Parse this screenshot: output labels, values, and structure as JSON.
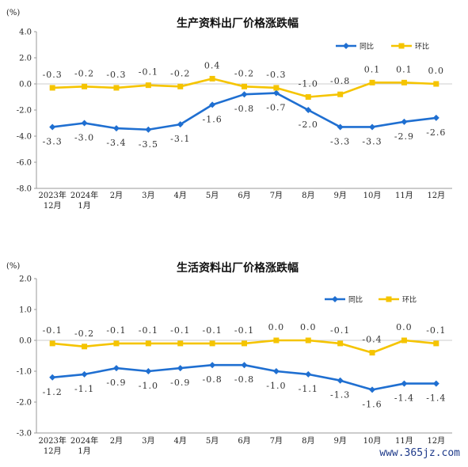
{
  "chart_data": [
    {
      "type": "line",
      "title": "生产资料出厂价格涨跌幅",
      "ylabel": "(%)",
      "ylim": [
        -8.0,
        4.0
      ],
      "yticks": [
        "4.0",
        "2.0",
        "0.0",
        "-2.0",
        "-4.0",
        "-6.0",
        "-8.0"
      ],
      "ytick_values": [
        4,
        2,
        0,
        -2,
        -4,
        -6,
        -8
      ],
      "categories": [
        "2023年12月",
        "2024年1月",
        "2月",
        "3月",
        "4月",
        "5月",
        "6月",
        "7月",
        "8月",
        "9月",
        "10月",
        "11月",
        "12月"
      ],
      "category_lines": [
        [
          "2023年",
          "12月"
        ],
        [
          "2024年",
          "1月"
        ],
        [
          "2月"
        ],
        [
          "3月"
        ],
        [
          "4月"
        ],
        [
          "5月"
        ],
        [
          "6月"
        ],
        [
          "7月"
        ],
        [
          "8月"
        ],
        [
          "9月"
        ],
        [
          "10月"
        ],
        [
          "11月"
        ],
        [
          "12月"
        ]
      ],
      "series": [
        {
          "name": "同比",
          "color": "#1f6fd1",
          "values": [
            -3.3,
            -3.0,
            -3.4,
            -3.5,
            -3.1,
            -1.6,
            -0.8,
            -0.7,
            -2.0,
            -3.3,
            -3.3,
            -2.9,
            -2.6
          ],
          "labels": [
            "-3.3",
            "-3.0",
            "-3.4",
            "-3.5",
            "-3.1",
            "-1.6",
            "-0.8",
            "-0.7",
            "-2.0",
            "-3.3",
            "-3.3",
            "-2.9",
            "-2.6"
          ]
        },
        {
          "name": "环比",
          "color": "#f5c400",
          "values": [
            -0.3,
            -0.2,
            -0.3,
            -0.1,
            -0.2,
            0.4,
            -0.2,
            -0.3,
            -1.0,
            -0.8,
            0.1,
            0.1,
            0.0
          ],
          "labels": [
            "-0.3",
            "-0.2",
            "-0.3",
            "-0.1",
            "-0.2",
            "0.4",
            "-0.2",
            "-0.3",
            "-1.0",
            "-0.8",
            "0.1",
            "0.1",
            "0.0"
          ]
        }
      ],
      "legend_position": "top-right",
      "grid": false
    },
    {
      "type": "line",
      "title": "生活资料出厂价格涨跌幅",
      "ylabel": "(%)",
      "ylim": [
        -3.0,
        2.0
      ],
      "yticks": [
        "2.0",
        "1.0",
        "0.0",
        "-1.0",
        "-2.0",
        "-3.0"
      ],
      "ytick_values": [
        2,
        1,
        0,
        -1,
        -2,
        -3
      ],
      "categories": [
        "2023年12月",
        "2024年1月",
        "2月",
        "3月",
        "4月",
        "5月",
        "6月",
        "7月",
        "8月",
        "9月",
        "10月",
        "11月",
        "12月"
      ],
      "category_lines": [
        [
          "2023年",
          "12月"
        ],
        [
          "2024年",
          "1月"
        ],
        [
          "2月"
        ],
        [
          "3月"
        ],
        [
          "4月"
        ],
        [
          "5月"
        ],
        [
          "6月"
        ],
        [
          "7月"
        ],
        [
          "8月"
        ],
        [
          "9月"
        ],
        [
          "10月"
        ],
        [
          "11月"
        ],
        [
          "12月"
        ]
      ],
      "series": [
        {
          "name": "同比",
          "color": "#1f6fd1",
          "values": [
            -1.2,
            -1.1,
            -0.9,
            -1.0,
            -0.9,
            -0.8,
            -0.8,
            -1.0,
            -1.1,
            -1.3,
            -1.6,
            -1.4,
            -1.4
          ],
          "labels": [
            "-1.2",
            "-1.1",
            "-0.9",
            "-1.0",
            "-0.9",
            "-0.8",
            "-0.8",
            "-1.0",
            "-1.1",
            "-1.3",
            "-1.6",
            "-1.4",
            "-1.4"
          ]
        },
        {
          "name": "环比",
          "color": "#f5c400",
          "values": [
            -0.1,
            -0.2,
            -0.1,
            -0.1,
            -0.1,
            -0.1,
            -0.1,
            0.0,
            0.0,
            -0.1,
            -0.4,
            0.0,
            -0.1
          ],
          "labels": [
            "-0.1",
            "-0.2",
            "-0.1",
            "-0.1",
            "-0.1",
            "-0.1",
            "-0.1",
            "0.0",
            "0.0",
            "-0.1",
            "-0.4",
            "0.0",
            "-0.1"
          ]
        }
      ],
      "legend_position": "top-right",
      "grid": false
    }
  ],
  "watermark": "www.365jz.com"
}
